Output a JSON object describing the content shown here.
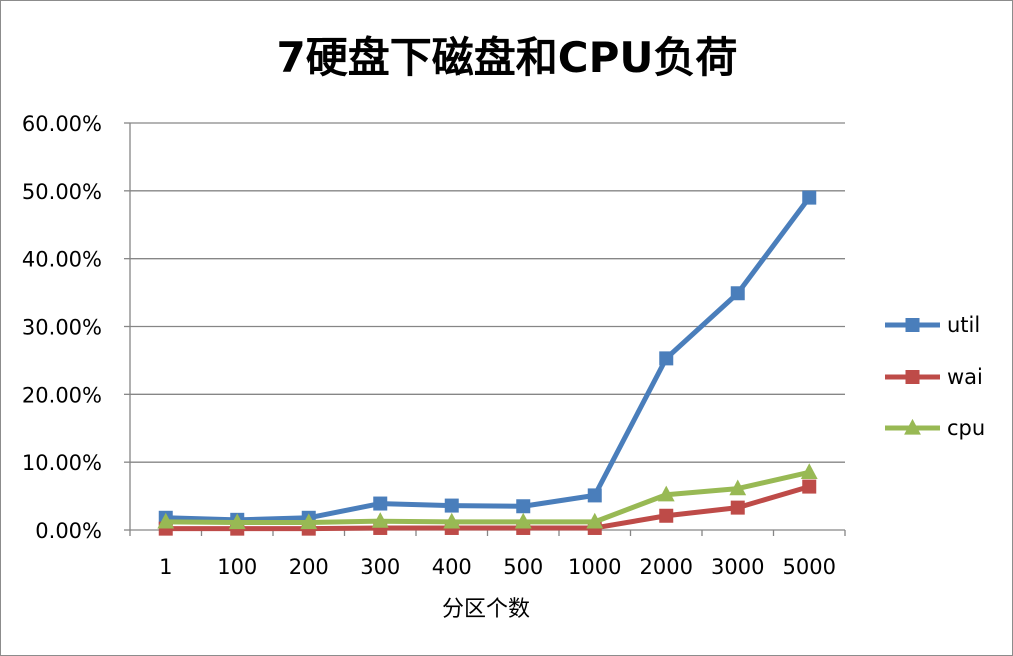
{
  "chart_data": {
    "type": "line",
    "title": "7硬盘下磁盘和CPU负荷",
    "xlabel": "分区个数",
    "ylabel": "",
    "categories": [
      "1",
      "100",
      "200",
      "300",
      "400",
      "500",
      "1000",
      "2000",
      "3000",
      "5000"
    ],
    "ylim": [
      0,
      0.6
    ],
    "y_ticks": [
      0,
      0.1,
      0.2,
      0.3,
      0.4,
      0.5,
      0.6
    ],
    "y_tick_labels": [
      "0.00%",
      "10.00%",
      "20.00%",
      "30.00%",
      "40.00%",
      "50.00%",
      "60.00%"
    ],
    "grid": "horizontal",
    "legend_position": "right",
    "series": [
      {
        "name": "util",
        "color": "#4a7ebb",
        "marker": "square",
        "values": [
          0.018,
          0.015,
          0.018,
          0.039,
          0.036,
          0.035,
          0.051,
          0.253,
          0.349,
          0.49
        ]
      },
      {
        "name": "wai",
        "color": "#be4b48",
        "marker": "square",
        "values": [
          0.002,
          0.002,
          0.002,
          0.003,
          0.003,
          0.003,
          0.003,
          0.021,
          0.033,
          0.064
        ]
      },
      {
        "name": "cpu",
        "color": "#98b954",
        "marker": "triangle",
        "values": [
          0.012,
          0.011,
          0.011,
          0.013,
          0.012,
          0.012,
          0.012,
          0.052,
          0.061,
          0.085
        ]
      }
    ]
  }
}
